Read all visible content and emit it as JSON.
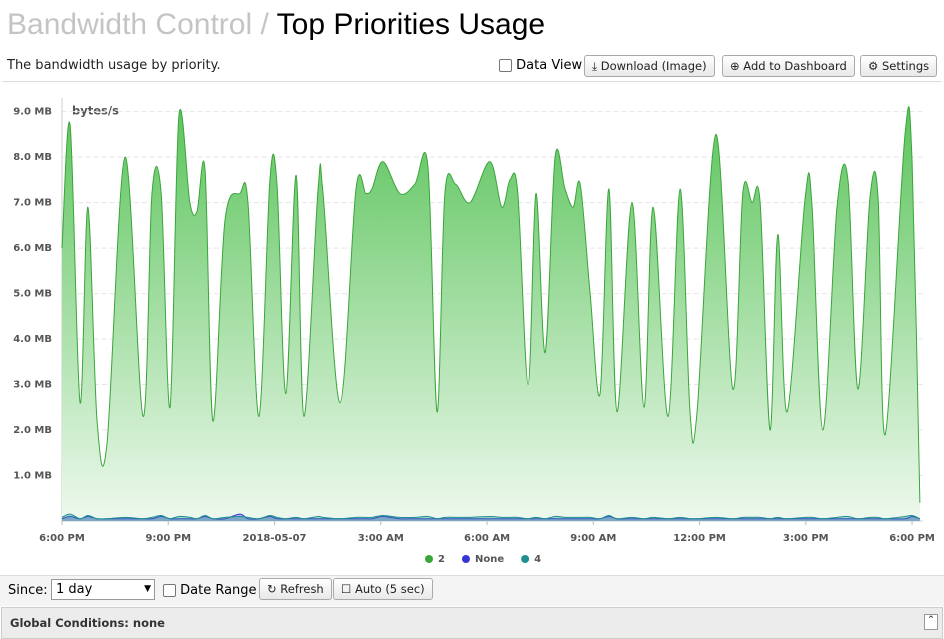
{
  "header": {
    "section": "Bandwidth Control",
    "separator": "/",
    "title": "Top Priorities Usage",
    "description": "The bandwidth usage by priority."
  },
  "toolbar": {
    "data_view": "Data View",
    "download": "Download (Image)",
    "add_dashboard": "Add to Dashboard",
    "settings": "Settings"
  },
  "chart_data": {
    "type": "area",
    "y_label": "bytes/s",
    "x": [
      0,
      0.23,
      0.51,
      0.73,
      0.99,
      1.27,
      1.78,
      2.29,
      2.54,
      2.8,
      3.05,
      3.3,
      3.61,
      3.81,
      4.04,
      4.26,
      4.6,
      5.02,
      5.25,
      5.56,
      5.87,
      6.07,
      6.32,
      6.61,
      6.83,
      7.23,
      7.37,
      7.85,
      8.3,
      8.58,
      8.75,
      9.06,
      9.54,
      9.96,
      10.33,
      10.59,
      10.81,
      11.12,
      11.52,
      12.08,
      12.42,
      12.65,
      12.87,
      13.16,
      13.38,
      13.64,
      13.92,
      14.2,
      14.43,
      14.63,
      14.91,
      15.19,
      15.44,
      15.67,
      16.09,
      16.43,
      16.69,
      17.11,
      17.45,
      17.73,
      17.93,
      18.46,
      18.94,
      19.22,
      19.48,
      19.71,
      19.99,
      20.21,
      20.47,
      20.98,
      21.17,
      21.48,
      21.88,
      22.19,
      22.47,
      22.81,
      23.04,
      23.24,
      23.8,
      24.0,
      24.22
    ],
    "series": [
      {
        "name": "2",
        "color": "#3aa53a",
        "values": [
          6.0,
          8.7,
          2.6,
          6.9,
          2.2,
          1.7,
          8.0,
          2.3,
          7.2,
          7.2,
          2.5,
          8.9,
          7.0,
          6.8,
          7.7,
          2.2,
          6.6,
          7.2,
          7.0,
          2.3,
          7.5,
          7.4,
          2.8,
          7.6,
          2.3,
          7.3,
          7.2,
          2.6,
          7.3,
          7.2,
          7.3,
          7.9,
          7.2,
          7.4,
          7.8,
          2.4,
          7.2,
          7.4,
          7.0,
          7.9,
          6.9,
          7.5,
          7.2,
          3.0,
          7.2,
          3.7,
          8.0,
          7.3,
          6.9,
          7.4,
          5.0,
          2.8,
          7.3,
          2.4,
          7.0,
          2.5,
          6.9,
          2.3,
          7.3,
          2.4,
          2.4,
          8.5,
          2.9,
          7.2,
          7.0,
          7.0,
          2.0,
          6.3,
          2.4,
          7.1,
          7.0,
          2.0,
          6.9,
          7.5,
          2.9,
          7.1,
          7.1,
          1.9,
          8.5,
          7.9,
          0.4
        ]
      },
      {
        "name": "None",
        "color": "#3535d8",
        "values": [
          0.05,
          0.1,
          0.05,
          0.1,
          0.05,
          0.05,
          0.05,
          0.05,
          0.05,
          0.1,
          0.05,
          0.05,
          0.05,
          0.05,
          0.1,
          0.05,
          0.05,
          0.15,
          0.05,
          0.05,
          0.1,
          0.05,
          0.05,
          0.05,
          0.05,
          0.05,
          0.05,
          0.05,
          0.05,
          0.05,
          0.05,
          0.1,
          0.05,
          0.05,
          0.05,
          0.05,
          0.05,
          0.05,
          0.05,
          0.05,
          0.05,
          0.05,
          0.05,
          0.05,
          0.05,
          0.05,
          0.05,
          0.05,
          0.05,
          0.05,
          0.05,
          0.05,
          0.1,
          0.05,
          0.05,
          0.05,
          0.05,
          0.05,
          0.05,
          0.05,
          0.05,
          0.05,
          0.05,
          0.05,
          0.05,
          0.05,
          0.05,
          0.05,
          0.05,
          0.05,
          0.05,
          0.05,
          0.05,
          0.05,
          0.05,
          0.05,
          0.05,
          0.05,
          0.05,
          0.1,
          0.05
        ]
      },
      {
        "name": "4",
        "color": "#1f8f8f",
        "values": [
          0.08,
          0.15,
          0.05,
          0.12,
          0.05,
          0.05,
          0.08,
          0.05,
          0.08,
          0.12,
          0.05,
          0.1,
          0.08,
          0.05,
          0.12,
          0.05,
          0.08,
          0.1,
          0.08,
          0.05,
          0.12,
          0.08,
          0.05,
          0.08,
          0.05,
          0.1,
          0.08,
          0.05,
          0.08,
          0.08,
          0.08,
          0.12,
          0.08,
          0.08,
          0.1,
          0.05,
          0.08,
          0.08,
          0.08,
          0.1,
          0.08,
          0.08,
          0.08,
          0.05,
          0.08,
          0.05,
          0.1,
          0.08,
          0.08,
          0.08,
          0.08,
          0.05,
          0.12,
          0.05,
          0.08,
          0.05,
          0.08,
          0.05,
          0.08,
          0.05,
          0.05,
          0.08,
          0.05,
          0.08,
          0.08,
          0.08,
          0.05,
          0.08,
          0.05,
          0.08,
          0.08,
          0.05,
          0.08,
          0.1,
          0.05,
          0.08,
          0.08,
          0.05,
          0.1,
          0.12,
          0.05
        ]
      }
    ],
    "xlim": [
      0,
      24.3
    ],
    "xticks": [
      {
        "value": 0,
        "label": "6:00 PM"
      },
      {
        "value": 3,
        "label": "9:00 PM"
      },
      {
        "value": 6,
        "label": "2018-05-07"
      },
      {
        "value": 9,
        "label": "3:00 AM"
      },
      {
        "value": 12,
        "label": "6:00 AM"
      },
      {
        "value": 15,
        "label": "9:00 AM"
      },
      {
        "value": 18,
        "label": "12:00 PM"
      },
      {
        "value": 21,
        "label": "3:00 PM"
      },
      {
        "value": 24,
        "label": "6:00 PM"
      }
    ],
    "ylim": [
      0,
      9.3
    ],
    "yticks": [
      {
        "value": 1,
        "label": "1.0 MB"
      },
      {
        "value": 2,
        "label": "2.0 MB"
      },
      {
        "value": 3,
        "label": "3.0 MB"
      },
      {
        "value": 4,
        "label": "4.0 MB"
      },
      {
        "value": 5,
        "label": "5.0 MB"
      },
      {
        "value": 6,
        "label": "6.0 MB"
      },
      {
        "value": 7,
        "label": "7.0 MB"
      },
      {
        "value": 8,
        "label": "8.0 MB"
      },
      {
        "value": 9,
        "label": "9.0 MB"
      }
    ],
    "grid": true
  },
  "controls": {
    "since_label": "Since:",
    "since_value": "1 day",
    "date_range": "Date Range",
    "refresh": "Refresh",
    "auto": "Auto (5 sec)"
  },
  "footer": {
    "global_conditions": "Global Conditions: none"
  }
}
